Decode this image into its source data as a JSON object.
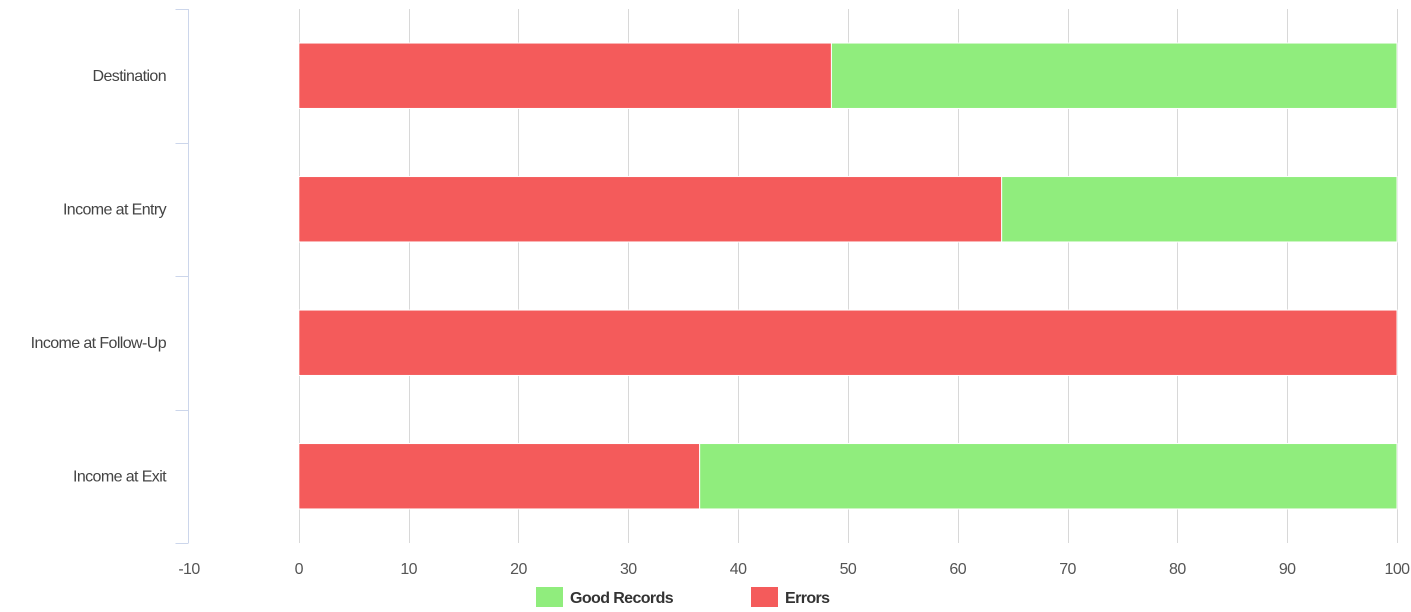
{
  "chart_data": {
    "type": "bar",
    "orientation": "horizontal",
    "stacked": true,
    "categories": [
      "Destination",
      "Income at Entry",
      "Income at Follow-Up",
      "Income at Exit"
    ],
    "series": [
      {
        "name": "Errors",
        "color": "#f45b5b",
        "values": [
          48.5,
          64,
          100,
          36.5
        ]
      },
      {
        "name": "Good Records",
        "color": "#90ed7d",
        "values": [
          51.5,
          36,
          0,
          63.5
        ]
      }
    ],
    "xlim": [
      -10,
      100
    ],
    "xticks": [
      -10,
      0,
      10,
      20,
      30,
      40,
      50,
      60,
      70,
      80,
      90,
      100
    ],
    "legend": {
      "position": "bottom-center",
      "items": [
        {
          "name": "Good Records",
          "color": "#90ed7d"
        },
        {
          "name": "Errors",
          "color": "#f45b5b"
        }
      ]
    },
    "grid": true,
    "axis_color": "#ccd6eb",
    "grid_color": "#d8d8d8"
  }
}
